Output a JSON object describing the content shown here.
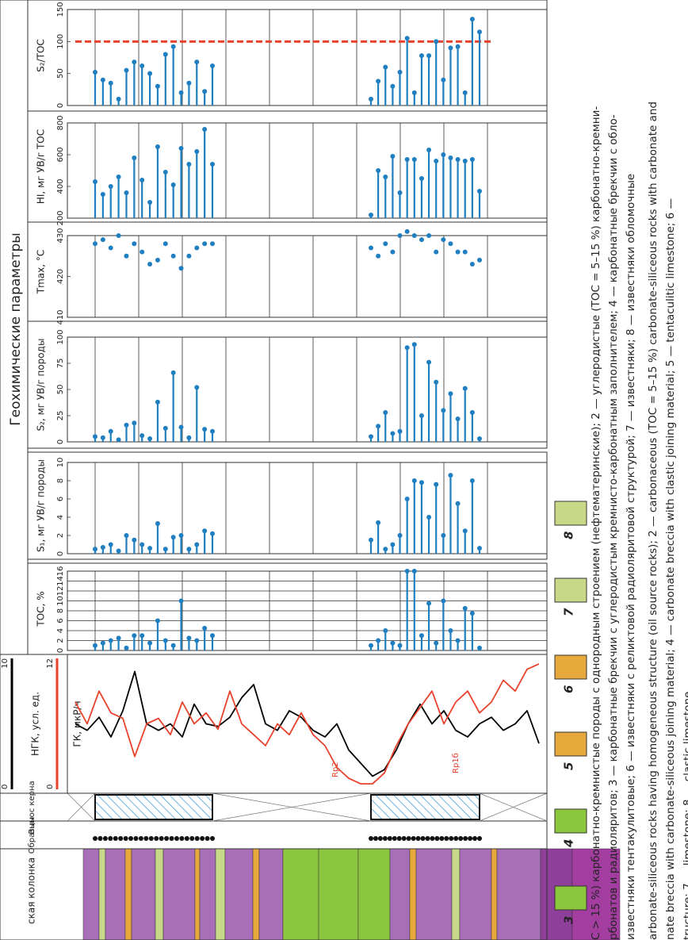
{
  "header": "Геохимические параметры",
  "columns": {
    "lithology": "ская колонка",
    "samples": "Образцы",
    "core": "Вынос керна"
  },
  "logs": {
    "ngk": {
      "label": "НГК, усл. ед.",
      "lim": [
        0,
        10
      ],
      "ticks": [
        0,
        10
      ],
      "color": "#000000",
      "values": [
        5,
        4.5,
        5.5,
        4,
        6,
        9,
        5,
        4.5,
        5,
        4,
        6.5,
        5,
        4.8,
        5.5,
        7,
        8,
        5,
        4.5,
        6,
        5.5,
        4.5,
        4,
        5,
        3,
        2,
        1,
        1.5,
        3,
        5,
        6.5,
        5,
        6,
        4.5,
        4,
        5,
        5.5,
        4.5,
        5,
        6,
        3.5
      ]
    },
    "gk": {
      "label": "ГК, мкР/ч",
      "lim": [
        0,
        12
      ],
      "ticks": [
        0,
        12
      ],
      "color": "#e8412c",
      "values": [
        8,
        6,
        9,
        7,
        6.5,
        3,
        6,
        6.5,
        5,
        8,
        6,
        7,
        5.5,
        9,
        6,
        5,
        4,
        6,
        5,
        7,
        5,
        4,
        2,
        1,
        0.5,
        0.5,
        1.5,
        4,
        6,
        7.5,
        9,
        6,
        8,
        9,
        7,
        8,
        10,
        9,
        11,
        11.5
      ]
    },
    "annotations": [
      "Rp2",
      "Rp1б"
    ]
  },
  "panels": [
    {
      "label": "ТОС, %",
      "lim": [
        0,
        16
      ],
      "ticks": [
        0,
        2,
        4,
        6,
        8,
        10,
        12,
        14,
        16
      ],
      "grid": true,
      "style": "stem",
      "color": "#1f7fc0",
      "groups": [
        [
          1,
          1.5,
          2,
          2.5,
          0.5,
          3,
          3,
          1.5,
          6,
          2,
          1,
          10,
          2.5,
          2,
          4.5,
          3
        ],
        [
          1,
          2,
          4,
          1.5,
          1,
          16,
          16,
          3,
          9.5,
          1.5,
          10,
          4,
          2,
          8.5,
          7.5,
          0.5
        ]
      ]
    },
    {
      "label": "S₁, мг УВ/г породы",
      "lim": [
        0,
        10
      ],
      "ticks": [
        0,
        2,
        4,
        6,
        8,
        10
      ],
      "grid": false,
      "style": "stem",
      "color": "#1f7fc0",
      "groups": [
        [
          0.5,
          0.7,
          1,
          0.3,
          2,
          1.5,
          1,
          0.6,
          3.3,
          0.5,
          1.8,
          2,
          0.5,
          1,
          2.5,
          2.2
        ],
        [
          1.5,
          3.4,
          0.5,
          1,
          2,
          6,
          8,
          7.8,
          4,
          7.6,
          2,
          8.6,
          5.5,
          2.5,
          8,
          0.6
        ]
      ]
    },
    {
      "label": "S₂, мг УВ/г породы",
      "lim": [
        0,
        100
      ],
      "ticks": [
        0,
        25,
        50,
        75,
        100
      ],
      "grid": false,
      "style": "stem",
      "color": "#1f7fc0",
      "groups": [
        [
          5,
          4,
          10,
          2,
          16,
          18,
          6,
          3,
          38,
          13,
          66,
          14,
          4,
          52,
          12,
          10
        ],
        [
          5,
          15,
          28,
          8,
          10,
          90,
          93,
          25,
          76,
          57,
          30,
          46,
          22,
          51,
          28,
          3
        ]
      ]
    },
    {
      "label": "Tmax, °C",
      "lim": [
        410,
        430
      ],
      "ticks": [
        410,
        420,
        430
      ],
      "grid": false,
      "style": "dot",
      "color": "#1f7fc0",
      "groups": [
        [
          428,
          429,
          427,
          430,
          425,
          428,
          426,
          423,
          424,
          428,
          425,
          422,
          425,
          427,
          428,
          428
        ],
        [
          427,
          425,
          428,
          426,
          430,
          431,
          430,
          429,
          430,
          426,
          429,
          428,
          426,
          426,
          423,
          424
        ]
      ]
    },
    {
      "label": "HI, мг УВ/г ТОС",
      "lim": [
        200,
        800
      ],
      "ticks": [
        200,
        400,
        600,
        800
      ],
      "grid": false,
      "style": "stem",
      "color": "#1f7fc0",
      "groups": [
        [
          430,
          350,
          400,
          460,
          360,
          580,
          440,
          300,
          650,
          490,
          410,
          640,
          540,
          620,
          760,
          540
        ],
        [
          220,
          500,
          460,
          590,
          360,
          570,
          570,
          450,
          630,
          560,
          600,
          580,
          570,
          560,
          570,
          370
        ]
      ]
    },
    {
      "label": "S₂/TOC",
      "lim": [
        0,
        150
      ],
      "ticks": [
        0,
        50,
        100,
        150
      ],
      "grid": false,
      "style": "stem",
      "color": "#1f7fc0",
      "reference": 100,
      "reference_color": "#e8412c",
      "groups": [
        [
          52,
          40,
          35,
          10,
          55,
          68,
          62,
          50,
          30,
          80,
          92,
          20,
          35,
          68,
          22,
          62
        ],
        [
          10,
          38,
          60,
          30,
          52,
          105,
          20,
          78,
          78,
          100,
          40,
          90,
          92,
          20,
          135,
          115
        ]
      ]
    }
  ],
  "legend": [
    "3",
    "4",
    "5",
    "6",
    "7",
    "8"
  ],
  "caption": [
    "C > 15 %) карбонатно-кремнистые породы с однородным строением (нефтематеринские); 2 — углеродистые (TOC = 5–15 %) карбонатно-кремни-",
    "рбонатов и радиоляритов; 3 — карбонатные брекчии с углеродистым кремнисто-карбонатным заполнителем; 4 — карбонатные брекчии с обло-",
    "известняки тентакулитовые; 6 — известняки с реликтовой радиоляритовой структурой; 7 — известняки; 8 — известняки обломочные",
    "arbonate-siliceous rocks having homogeneous structure (oil source rocks); 2 — carbonaceous (TOC = 5–15 %) carbonate-siliceous rocks with carbonate and",
    "nate breccia with carbonate-siliceous joining material; 4 — carbonate breccia with clastic joining material; 5 — tentaculitic limestone; 6 —",
    "tructure; 7 — limestone; 8 — clastic limestone"
  ]
}
